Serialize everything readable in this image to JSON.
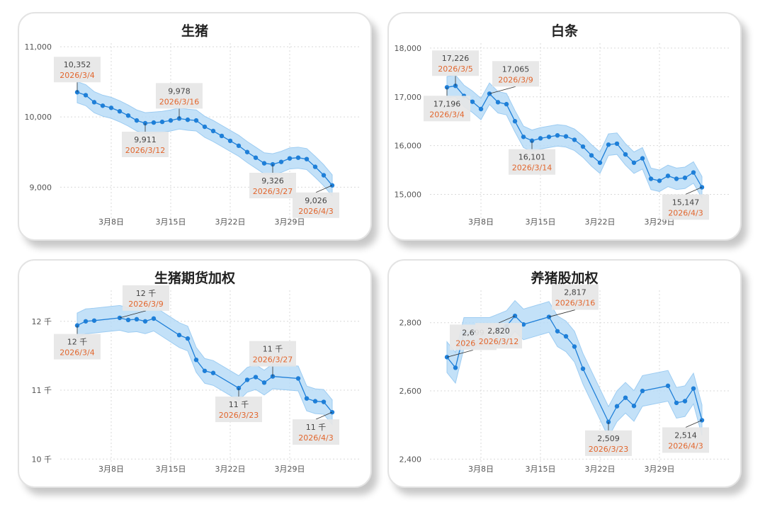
{
  "panels": [
    {
      "title": "生猪"
    },
    {
      "title": "白条"
    },
    {
      "title": "生猪期货加权"
    },
    {
      "title": "养猪股加权"
    }
  ],
  "colors": {
    "line": "#1e7fd8",
    "band": "#b9dcf7",
    "band_edge": "#8cc4f0",
    "label_bg": "#e6e6e6",
    "date_text": "#e2662d",
    "grid": "#d9d9d9"
  },
  "chart_data": [
    {
      "type": "line",
      "title": "生猪",
      "xlabel": "",
      "ylabel": "",
      "x_tick_labels": [
        "3月8日",
        "3月15日",
        "3月22日",
        "3月29日"
      ],
      "x_tick_days": [
        8,
        15,
        22,
        29
      ],
      "x_range_days": [
        2,
        38
      ],
      "y_ticks": [
        9000,
        10000,
        11000
      ],
      "y_tick_labels": [
        "9,000",
        "10,000",
        "11,000"
      ],
      "ylim": [
        8550,
        11050
      ],
      "band_width": 150,
      "grid": true,
      "series": [
        {
          "x_days": [
            4,
            5,
            6,
            7,
            8,
            9,
            10,
            11,
            12,
            13,
            14,
            15,
            16,
            17,
            18,
            19,
            20,
            21,
            22,
            23,
            24,
            25,
            26,
            27,
            28,
            29,
            30,
            31,
            32,
            33,
            34
          ],
          "values": [
            10352,
            10310,
            10210,
            10160,
            10130,
            10080,
            10020,
            9950,
            9911,
            9920,
            9930,
            9950,
            9978,
            9960,
            9950,
            9860,
            9800,
            9730,
            9660,
            9590,
            9500,
            9420,
            9340,
            9326,
            9360,
            9410,
            9420,
            9400,
            9290,
            9170,
            9026
          ]
        }
      ],
      "annotations": [
        {
          "value": "10,352",
          "date": "2026/3/4",
          "x_day": 4,
          "y": 10352,
          "pos": "above"
        },
        {
          "value": "9,911",
          "date": "2026/3/12",
          "x_day": 12,
          "y": 9911,
          "pos": "below"
        },
        {
          "value": "9,978",
          "date": "2026/3/16",
          "x_day": 16,
          "y": 9978,
          "pos": "above"
        },
        {
          "value": "9,326",
          "date": "2026/3/27",
          "x_day": 27,
          "y": 9326,
          "pos": "below"
        },
        {
          "value": "9,026",
          "date": "2026/4/3",
          "x_day": 34,
          "y": 9026,
          "pos": "belowleft"
        }
      ]
    },
    {
      "type": "line",
      "title": "白条",
      "xlabel": "",
      "ylabel": "",
      "x_tick_labels": [
        "3月8日",
        "3月15日",
        "3月22日",
        "3月29日"
      ],
      "x_tick_days": [
        8,
        15,
        22,
        29
      ],
      "x_range_days": [
        2,
        38
      ],
      "y_ticks": [
        15000,
        16000,
        17000,
        18000
      ],
      "y_tick_labels": [
        "15,000",
        "16,000",
        "17,000",
        "18,000"
      ],
      "ylim": [
        14500,
        18100
      ],
      "band_width": 220,
      "grid": true,
      "series": [
        {
          "x_days": [
            4,
            5,
            6,
            7,
            8,
            9,
            10,
            11,
            12,
            13,
            14,
            15,
            16,
            17,
            18,
            19,
            20,
            21,
            22,
            23,
            24,
            25,
            26,
            27,
            28,
            29,
            30,
            31,
            32,
            33,
            34
          ],
          "values": [
            17196,
            17226,
            17020,
            16900,
            16750,
            17065,
            16890,
            16850,
            16500,
            16180,
            16101,
            16150,
            16180,
            16210,
            16190,
            16120,
            15980,
            15800,
            15650,
            16020,
            16040,
            15820,
            15650,
            15740,
            15320,
            15280,
            15380,
            15320,
            15340,
            15450,
            15147
          ]
        }
      ],
      "annotations": [
        {
          "value": "17,226",
          "date": "2026/3/5",
          "x_day": 5,
          "y": 17226,
          "pos": "above"
        },
        {
          "value": "17,196",
          "date": "2026/3/4",
          "x_day": 4,
          "y": 17196,
          "pos": "below"
        },
        {
          "value": "17,065",
          "date": "2026/3/9",
          "x_day": 9,
          "y": 17065,
          "pos": "aboveright"
        },
        {
          "value": "16,101",
          "date": "2026/3/14",
          "x_day": 14,
          "y": 16101,
          "pos": "below"
        },
        {
          "value": "15,147",
          "date": "2026/4/3",
          "x_day": 34,
          "y": 15147,
          "pos": "belowleft"
        }
      ]
    },
    {
      "type": "line",
      "title": "生猪期货加权",
      "xlabel": "",
      "ylabel": "",
      "x_tick_labels": [
        "3月8日",
        "3月15日",
        "3月22日",
        "3月29日"
      ],
      "x_tick_days": [
        8,
        15,
        22,
        29
      ],
      "x_range_days": [
        2,
        38
      ],
      "y_ticks": [
        10000,
        11000,
        12000
      ],
      "y_tick_labels": [
        "10 千",
        "11 千",
        "12 千"
      ],
      "ylim": [
        9900,
        12450
      ],
      "band_width": 180,
      "grid": true,
      "series": [
        {
          "x_days": [
            4,
            5,
            6,
            9,
            10,
            11,
            12,
            13,
            16,
            17,
            18,
            19,
            20,
            23,
            24,
            25,
            26,
            27,
            30,
            31,
            32,
            33,
            34
          ],
          "values": [
            11940,
            12000,
            12010,
            12050,
            12020,
            12030,
            12000,
            12040,
            11800,
            11750,
            11440,
            11280,
            11250,
            11030,
            11150,
            11190,
            11110,
            11200,
            11170,
            10880,
            10840,
            10830,
            10680
          ]
        }
      ],
      "annotations": [
        {
          "value": "12 千",
          "date": "2026/3/4",
          "x_day": 4,
          "y": 11940,
          "pos": "below"
        },
        {
          "value": "12 千",
          "date": "2026/3/9",
          "x_day": 9,
          "y": 12050,
          "pos": "aboveright"
        },
        {
          "value": "11 千",
          "date": "2026/3/23",
          "x_day": 23,
          "y": 11030,
          "pos": "below"
        },
        {
          "value": "11 千",
          "date": "2026/3/27",
          "x_day": 27,
          "y": 11200,
          "pos": "above"
        },
        {
          "value": "11 千",
          "date": "2026/4/3",
          "x_day": 34,
          "y": 10680,
          "pos": "belowleft"
        }
      ]
    },
    {
      "type": "line",
      "title": "养猪股加权",
      "xlabel": "",
      "ylabel": "",
      "x_tick_labels": [
        "3月8日",
        "3月15日",
        "3月22日",
        "3月29日"
      ],
      "x_tick_days": [
        8,
        15,
        22,
        29
      ],
      "x_range_days": [
        2,
        38
      ],
      "y_ticks": [
        2400,
        2600,
        2800
      ],
      "y_tick_labels": [
        "2,400",
        "2,600",
        "2,800"
      ],
      "ylim": [
        2380,
        2895
      ],
      "band_width": 45,
      "grid": true,
      "series": [
        {
          "x_days": [
            4,
            5,
            6,
            9,
            10,
            11,
            12,
            13,
            16,
            17,
            18,
            19,
            20,
            23,
            24,
            25,
            26,
            27,
            30,
            31,
            32,
            33,
            34
          ],
          "values": [
            2699,
            2668,
            2770,
            2770,
            2780,
            2790,
            2820,
            2795,
            2817,
            2775,
            2760,
            2730,
            2665,
            2509,
            2555,
            2580,
            2556,
            2600,
            2615,
            2565,
            2570,
            2607,
            2514
          ]
        }
      ],
      "annotations": [
        {
          "value": "2,699",
          "date": "2026/3/4",
          "x_day": 4,
          "y": 2699,
          "pos": "aboveright"
        },
        {
          "value": "2,820",
          "date": "2026/3/12",
          "x_day": 12,
          "y": 2820,
          "pos": "belowleft"
        },
        {
          "value": "2,817",
          "date": "2026/3/16",
          "x_day": 16,
          "y": 2817,
          "pos": "aboveright"
        },
        {
          "value": "2,509",
          "date": "2026/3/23",
          "x_day": 23,
          "y": 2509,
          "pos": "below"
        },
        {
          "value": "2,514",
          "date": "2026/4/3",
          "x_day": 34,
          "y": 2514,
          "pos": "belowleft"
        }
      ]
    }
  ]
}
